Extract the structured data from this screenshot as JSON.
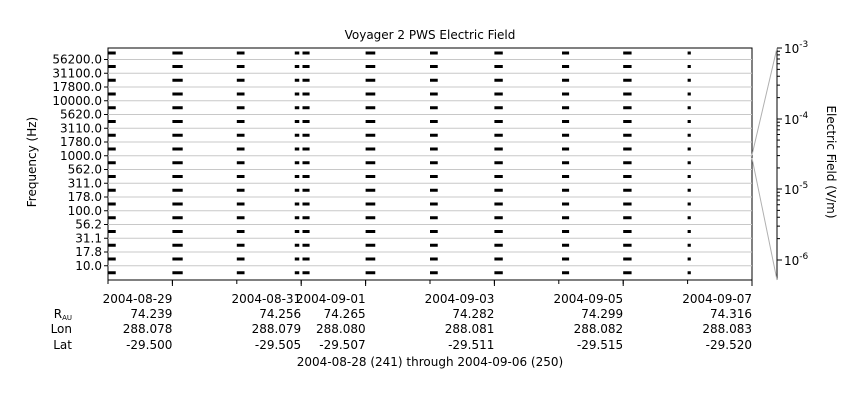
{
  "chart_data": {
    "type": "heatmap",
    "title": "Voyager 2 PWS Electric Field",
    "ylabel": "Frequency (Hz)",
    "colorbar_label": "Electric Field (V/m)",
    "colorbar_scale": "log",
    "colorbar_ticks": [
      {
        "base": "10",
        "exp": "-3"
      },
      {
        "base": "10",
        "exp": "-4"
      },
      {
        "base": "10",
        "exp": "-5"
      },
      {
        "base": "10",
        "exp": "-6"
      }
    ],
    "y_scale": "log",
    "y_ticks": [
      "56200.0",
      "31100.0",
      "17800.0",
      "10000.0",
      "5620.0",
      "3110.0",
      "1780.0",
      "1000.0",
      "562.0",
      "311.0",
      "178.0",
      "100.0",
      "56.2",
      "31.1",
      "17.8",
      "10.0"
    ],
    "x_ticks": [
      "2004-08-29",
      "2004-08-31",
      "2004-09-01",
      "2004-09-03",
      "2004-09-05",
      "2004-09-07"
    ],
    "x_range": [
      "2004-08-28",
      "2004-09-07"
    ],
    "grid": true,
    "colormap": "grayscale",
    "data_blocks": [
      {
        "start": "2004-08-28.00",
        "end": "2004-08-28.12"
      },
      {
        "start": "2004-08-29.00",
        "end": "2004-08-29.16"
      },
      {
        "start": "2004-08-30.00",
        "end": "2004-08-30.12"
      },
      {
        "start": "2004-08-30.90",
        "end": "2004-08-30.97"
      },
      {
        "start": "2004-08-31.02",
        "end": "2004-08-31.13"
      },
      {
        "start": "2004-09-01.00",
        "end": "2004-09-01.15"
      },
      {
        "start": "2004-09-02.00",
        "end": "2004-09-02.12"
      },
      {
        "start": "2004-09-03.00",
        "end": "2004-09-03.13"
      },
      {
        "start": "2004-09-04.05",
        "end": "2004-09-04.16"
      },
      {
        "start": "2004-09-05.00",
        "end": "2004-09-05.13"
      },
      {
        "start": "2004-09-06.00",
        "end": "2004-09-06.05"
      }
    ]
  },
  "ephemeris": {
    "labels": {
      "r": "R",
      "r_sub": "AU",
      "lon": "Lon",
      "lat": "Lat"
    },
    "columns": [
      {
        "r": "74.239",
        "lon": "288.078",
        "lat": "-29.500"
      },
      {
        "r": "74.256",
        "lon": "288.079",
        "lat": "-29.505"
      },
      {
        "r": "74.265",
        "lon": "288.080",
        "lat": "-29.507"
      },
      {
        "r": "74.282",
        "lon": "288.081",
        "lat": "-29.511"
      },
      {
        "r": "74.299",
        "lon": "288.082",
        "lat": "-29.515"
      },
      {
        "r": "74.316",
        "lon": "288.083",
        "lat": "-29.520"
      }
    ]
  },
  "range_label": "2004-08-28 (241) through 2004-09-06 (250)"
}
